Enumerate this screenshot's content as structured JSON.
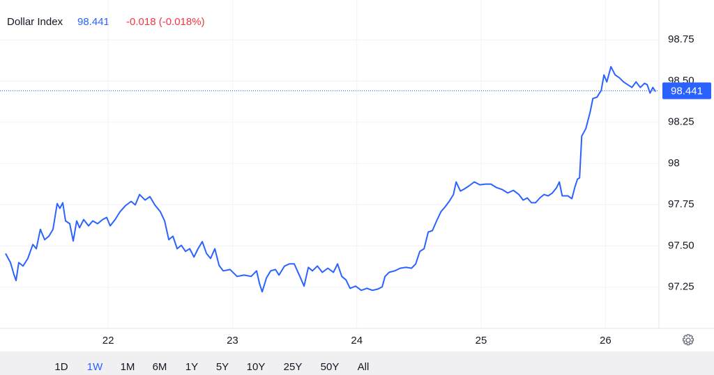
{
  "chart_data": {
    "type": "line",
    "title": "Dollar Index",
    "last_value": 98.441,
    "change": "-0.018 (-0.018%)",
    "color": "#2962ff",
    "grid": true,
    "xlim": [
      21.13,
      26.43
    ],
    "xticks": [
      22,
      23,
      24,
      25,
      26
    ],
    "ylim": [
      97.0,
      99.0
    ],
    "yticks": [
      97.25,
      {
        "value": 97.5,
        "label": "97.50"
      },
      97.75,
      98,
      98.25,
      {
        "value": 98.5,
        "label": "98.50"
      },
      98.75
    ],
    "x": [
      21.175,
      21.214,
      21.242,
      21.259,
      21.281,
      21.315,
      21.354,
      21.394,
      21.422,
      21.455,
      21.489,
      21.523,
      21.556,
      21.59,
      21.612,
      21.635,
      21.657,
      21.691,
      21.719,
      21.747,
      21.77,
      21.803,
      21.842,
      21.876,
      21.915,
      21.955,
      21.988,
      22.016,
      22.056,
      22.095,
      22.14,
      22.185,
      22.218,
      22.252,
      22.297,
      22.336,
      22.375,
      22.42,
      22.454,
      22.488,
      22.521,
      22.555,
      22.589,
      22.622,
      22.656,
      22.69,
      22.723,
      22.757,
      22.791,
      22.824,
      22.858,
      22.892,
      22.925,
      22.981,
      23.037,
      23.094,
      23.15,
      23.194,
      23.217,
      23.239,
      23.273,
      23.307,
      23.346,
      23.374,
      23.419,
      23.458,
      23.497,
      23.542,
      23.576,
      23.61,
      23.643,
      23.683,
      23.722,
      23.767,
      23.812,
      23.845,
      23.879,
      23.913,
      23.946,
      23.991,
      24.036,
      24.081,
      24.126,
      24.171,
      24.204,
      24.227,
      24.26,
      24.305,
      24.35,
      24.395,
      24.44,
      24.474,
      24.507,
      24.541,
      24.575,
      24.608,
      24.642,
      24.676,
      24.709,
      24.743,
      24.777,
      24.799,
      24.833,
      24.866,
      24.9,
      24.945,
      24.99,
      25.035,
      25.079,
      25.124,
      25.169,
      25.214,
      25.259,
      25.304,
      25.338,
      25.371,
      25.405,
      25.438,
      25.472,
      25.506,
      25.539,
      25.573,
      25.607,
      25.629,
      25.652,
      25.697,
      25.73,
      25.753,
      25.775,
      25.792,
      25.809,
      25.842,
      25.876,
      25.899,
      25.932,
      25.966,
      25.988,
      26.011,
      26.044,
      26.078,
      26.112,
      26.145,
      26.179,
      26.213,
      26.246,
      26.28,
      26.314,
      26.336,
      26.359,
      26.381,
      26.403
    ],
    "values": [
      97.454,
      97.399,
      97.327,
      97.29,
      97.399,
      97.378,
      97.424,
      97.509,
      97.483,
      97.601,
      97.538,
      97.559,
      97.601,
      97.757,
      97.728,
      97.762,
      97.652,
      97.635,
      97.53,
      97.652,
      97.61,
      97.66,
      97.622,
      97.652,
      97.635,
      97.66,
      97.673,
      97.622,
      97.66,
      97.707,
      97.745,
      97.77,
      97.749,
      97.812,
      97.778,
      97.799,
      97.749,
      97.707,
      97.652,
      97.538,
      97.559,
      97.483,
      97.504,
      97.467,
      97.483,
      97.433,
      97.483,
      97.526,
      97.454,
      97.424,
      97.483,
      97.382,
      97.349,
      97.357,
      97.315,
      97.323,
      97.315,
      97.349,
      97.273,
      97.222,
      97.306,
      97.349,
      97.357,
      97.323,
      97.378,
      97.391,
      97.391,
      97.315,
      97.256,
      97.37,
      97.349,
      97.378,
      97.34,
      97.365,
      97.34,
      97.391,
      97.315,
      97.294,
      97.243,
      97.256,
      97.231,
      97.243,
      97.231,
      97.239,
      97.252,
      97.315,
      97.34,
      97.349,
      97.365,
      97.37,
      97.365,
      97.391,
      97.467,
      97.483,
      97.585,
      97.593,
      97.652,
      97.707,
      97.736,
      97.77,
      97.812,
      97.888,
      97.833,
      97.846,
      97.863,
      97.888,
      97.871,
      97.875,
      97.875,
      97.854,
      97.842,
      97.821,
      97.837,
      97.812,
      97.778,
      97.791,
      97.762,
      97.762,
      97.791,
      97.812,
      97.804,
      97.821,
      97.854,
      97.888,
      97.804,
      97.804,
      97.787,
      97.854,
      97.905,
      97.913,
      98.166,
      98.212,
      98.309,
      98.394,
      98.402,
      98.444,
      98.537,
      98.495,
      98.587,
      98.537,
      98.52,
      98.495,
      98.478,
      98.461,
      98.495,
      98.461,
      98.486,
      98.478,
      98.427,
      98.461,
      98.436
    ],
    "ranges": [
      "1D",
      "1W",
      "1M",
      "6M",
      "1Y",
      "5Y",
      "10Y",
      "25Y",
      "50Y",
      "All"
    ],
    "active_range": 1
  }
}
